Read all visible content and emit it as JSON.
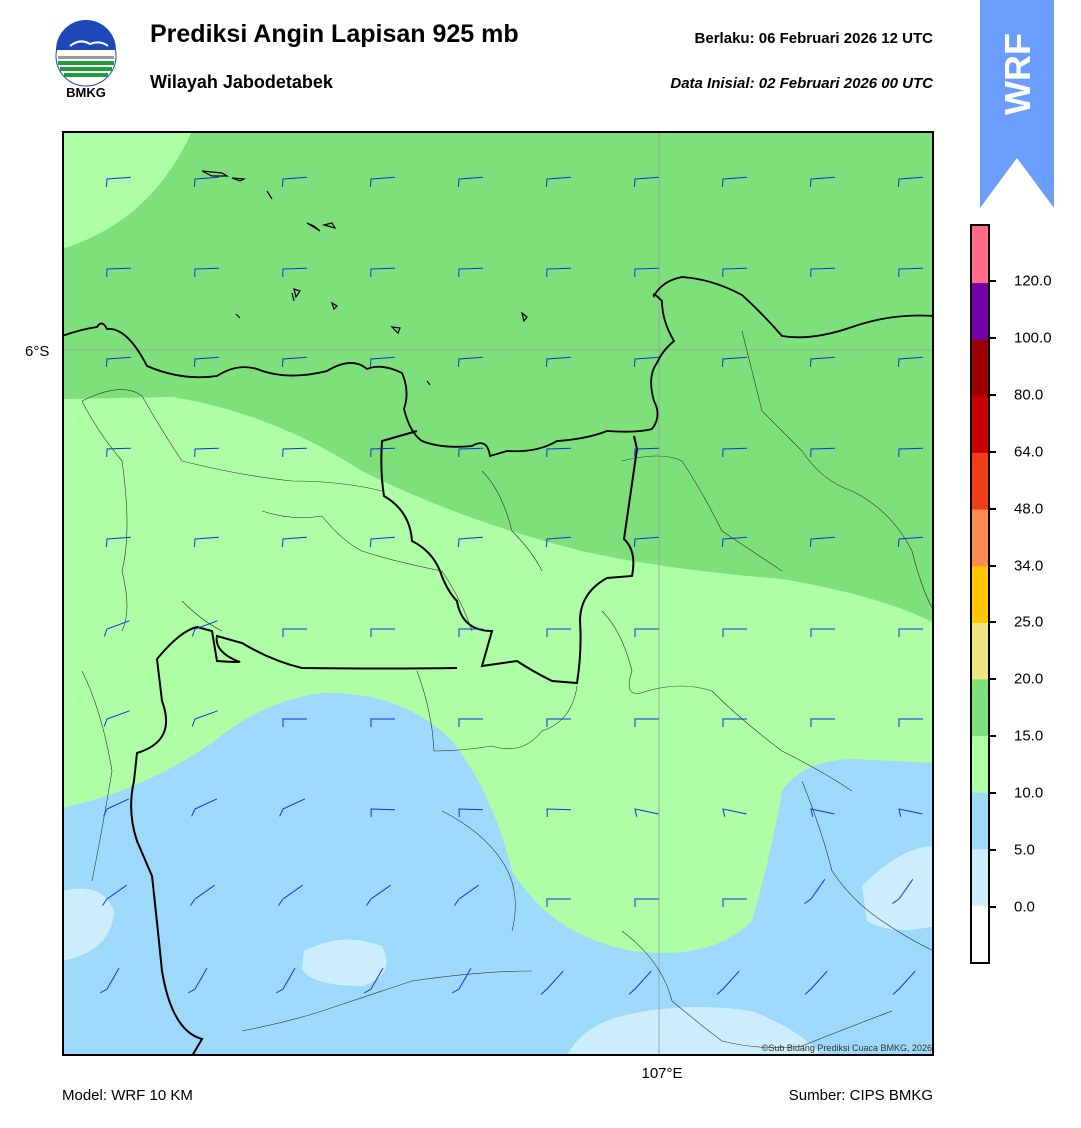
{
  "header": {
    "title": "Prediksi Angin Lapisan 925 mb",
    "subtitle": "Wilayah Jabodetabek",
    "valid_label": "Berlaku:  06 Februari 2026 12 UTC",
    "init_label": "Data Inisial:  02 Februari 2026 00 UTC",
    "logo_text": "BMKG",
    "badge_text": "WRF"
  },
  "map": {
    "lat_label": "6°S",
    "lon_label": "107°E",
    "credit": "©Sub Bidang Prediksi Cuaca BMKG, 2026",
    "barb_color": "#1530e0"
  },
  "footer": {
    "model": "Model: WRF 10 KM",
    "source": "Sumber: CIPS BMKG"
  },
  "colorbar": {
    "unit_levels": [
      0.0,
      5.0,
      10.0,
      15.0,
      20.0,
      25.0,
      34.0,
      48.0,
      64.0,
      80.0,
      100.0,
      120.0
    ],
    "tick_labels": [
      "0.0",
      "5.0",
      "10.0",
      "15.0",
      "20.0",
      "25.0",
      "34.0",
      "48.0",
      "64.0",
      "80.0",
      "100.0",
      "120.0"
    ],
    "colors": [
      "#ffffff",
      "#cdeeff",
      "#9dd9fb",
      "#adfea4",
      "#7ee07a",
      "#f0e680",
      "#ffc700",
      "#f98a52",
      "#ef3e17",
      "#c80000",
      "#9b0000",
      "#7200a8",
      "#ff6c88"
    ]
  }
}
